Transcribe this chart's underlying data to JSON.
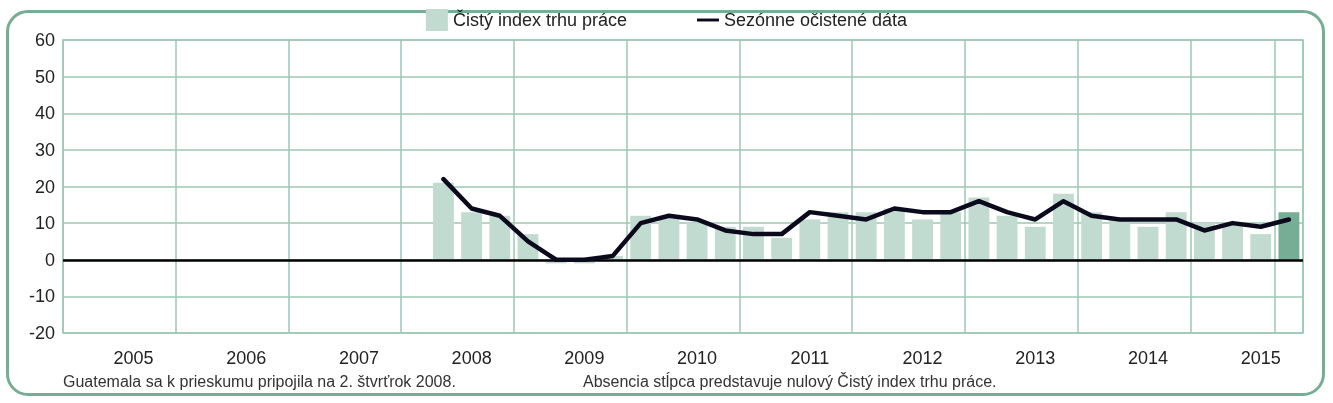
{
  "chart_data": {
    "type": "bar",
    "categories": [
      null,
      null,
      "2005",
      null,
      null,
      null,
      "2006",
      null,
      null,
      null,
      "2007",
      null,
      null,
      null,
      "2008",
      null,
      null,
      null,
      "2009",
      null,
      null,
      null,
      "2010",
      null,
      null,
      null,
      "2011",
      null,
      null,
      null,
      "2012",
      null,
      null,
      null,
      "2013",
      null,
      null,
      null,
      "2014",
      null,
      null,
      null,
      "2015",
      null
    ],
    "series": [
      {
        "name": "Čistý index trhu práce",
        "color": "#c2dbd1",
        "colors": [
          "#c2dbd1",
          "#c2dbd1",
          "#c2dbd1",
          "#c2dbd1",
          "#c2dbd1",
          "#c2dbd1",
          "#c2dbd1",
          "#c2dbd1",
          "#c2dbd1",
          "#c2dbd1",
          "#c2dbd1",
          "#c2dbd1",
          "#c2dbd1",
          "#c2dbd1",
          "#c2dbd1",
          "#c2dbd1",
          "#c2dbd1",
          "#c2dbd1",
          "#c2dbd1",
          "#c2dbd1",
          "#c2dbd1",
          "#c2dbd1",
          "#c2dbd1",
          "#c2dbd1",
          "#c2dbd1",
          "#c2dbd1",
          "#c2dbd1",
          "#c2dbd1",
          "#c2dbd1",
          "#c2dbd1",
          "#c2dbd1",
          "#c2dbd1",
          "#c2dbd1",
          "#c2dbd1",
          "#c2dbd1",
          "#c2dbd1",
          "#c2dbd1",
          "#c2dbd1",
          "#c2dbd1",
          "#c2dbd1",
          "#c2dbd1",
          "#c2dbd1",
          "#c2dbd1",
          "#75ad95"
        ],
        "values": [
          null,
          null,
          null,
          null,
          null,
          null,
          null,
          null,
          null,
          null,
          null,
          null,
          null,
          21,
          13,
          12,
          7,
          -1,
          -1,
          1,
          12,
          12,
          10,
          9,
          9,
          6,
          11,
          13,
          13,
          14,
          11,
          13,
          17,
          12,
          9,
          18,
          13,
          11,
          9,
          13,
          10,
          10,
          7,
          13
        ]
      },
      {
        "name": "Sezónne očistené dáta",
        "type": "line",
        "color": "#0b0a1c",
        "marker": "none",
        "line_style": "solid",
        "values": [
          null,
          null,
          null,
          null,
          null,
          null,
          null,
          null,
          null,
          null,
          null,
          null,
          null,
          22,
          14,
          12,
          5,
          0,
          0,
          1,
          10,
          12,
          11,
          8,
          7,
          7,
          13,
          12,
          11,
          14,
          13,
          13,
          16,
          13,
          11,
          16,
          12,
          11,
          11,
          11,
          8,
          10,
          9,
          11
        ]
      }
    ],
    "ylim": [
      -20,
      60
    ],
    "yticks": [
      -20,
      -10,
      0,
      10,
      20,
      30,
      40,
      50,
      60
    ],
    "grid": true,
    "legend": "top",
    "ref_lines": [
      {
        "axis": "y",
        "value": 0,
        "color": "#000000",
        "line_style": "solid"
      }
    ],
    "annotations": [
      "Guatemala sa k prieskumu pripojila na 2. štvrťrok 2008.",
      "Absencia stĺpca predstavuje nulový Čistý index trhu práce."
    ]
  }
}
